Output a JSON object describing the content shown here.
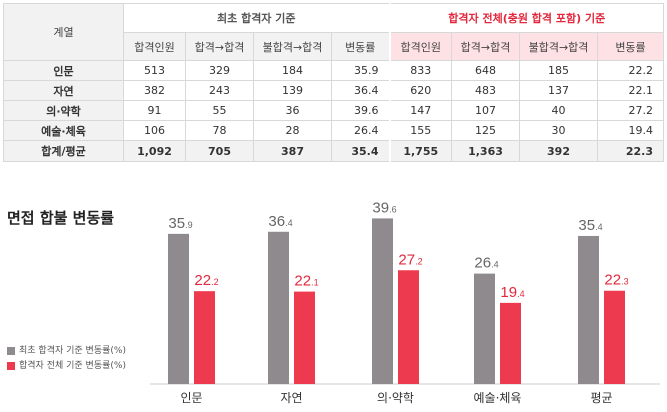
{
  "table": {
    "row_header": "계열",
    "group1_title": "최초 합격자 기준",
    "group2_title": "합격자 전체(충원 합격 포함) 기준",
    "columns": [
      "합격인원",
      "합격→합격",
      "불합격→합격",
      "변동률",
      "합격인원",
      "합격→합격",
      "불합격→합격",
      "변동률"
    ],
    "rows": [
      {
        "label": "인문",
        "values": [
          "513",
          "329",
          "184",
          "35.9",
          "833",
          "648",
          "185",
          "22.2"
        ]
      },
      {
        "label": "자연",
        "values": [
          "382",
          "243",
          "139",
          "36.4",
          "620",
          "483",
          "137",
          "22.1"
        ]
      },
      {
        "label": "의·약학",
        "values": [
          "91",
          "55",
          "36",
          "39.6",
          "147",
          "107",
          "40",
          "27.2"
        ]
      },
      {
        "label": "예술·체육",
        "values": [
          "106",
          "78",
          "28",
          "26.4",
          "155",
          "125",
          "30",
          "19.4"
        ]
      },
      {
        "label": "합계/평균",
        "values": [
          "1,092",
          "705",
          "387",
          "35.4",
          "1,755",
          "1,363",
          "392",
          "22.3"
        ]
      }
    ]
  },
  "chart_title": "면접 합불 변동률",
  "legend": {
    "item1": "최초 합격자 기준 변동률(%)",
    "item2": "합격자 전체 기준 변동률(%)"
  },
  "chart_data": {
    "type": "bar",
    "title": "면접 합불 변동률",
    "categories": [
      "인문",
      "자연",
      "의·약학",
      "예술·체육",
      "평균"
    ],
    "series": [
      {
        "name": "최초 합격자 기준 변동률(%)",
        "values": [
          35.9,
          36.4,
          39.6,
          26.4,
          35.4
        ],
        "color": "#8e8a8e"
      },
      {
        "name": "합격자 전체 기준 변동률(%)",
        "values": [
          22.2,
          22.1,
          27.2,
          19.4,
          22.3
        ],
        "color": "#ee3a4f"
      }
    ],
    "ylim": [
      0,
      44
    ],
    "legend_position": "left"
  },
  "colors": {
    "accent_red": "#e2283c",
    "bar_gray": "#8e8a8e",
    "bar_red": "#ee3a4f"
  }
}
